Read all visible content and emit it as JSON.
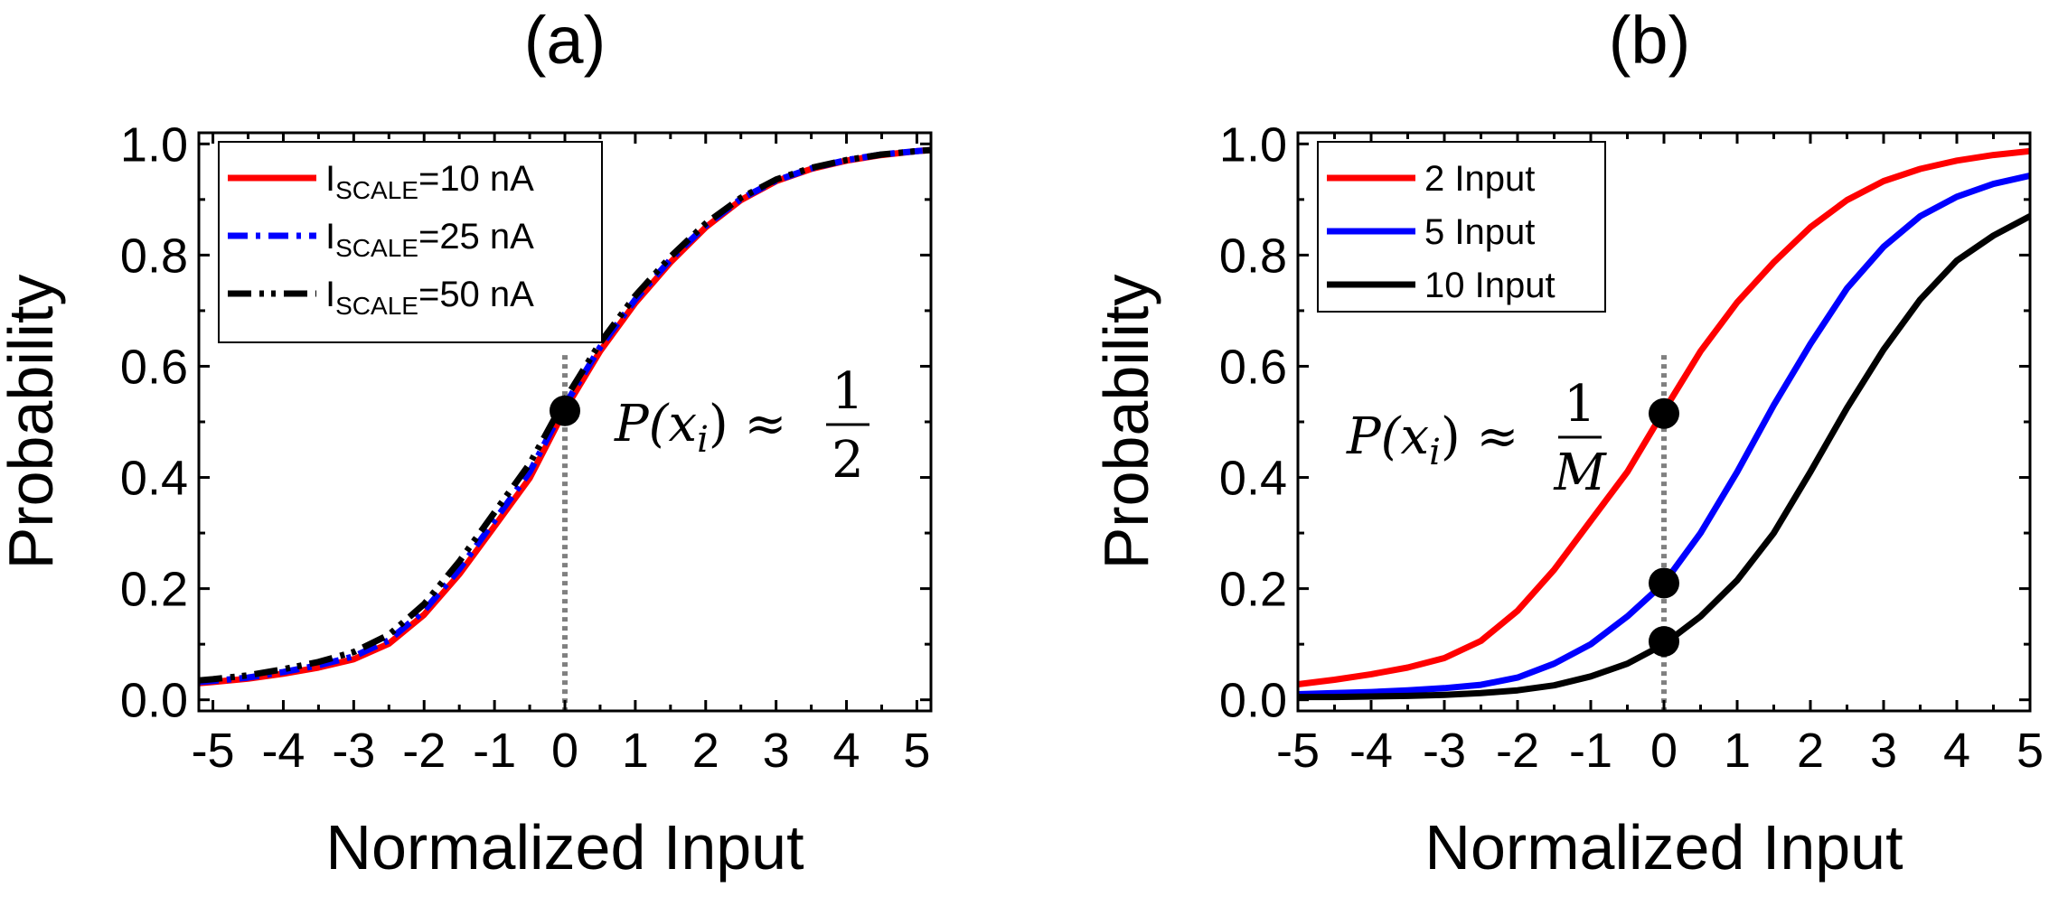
{
  "chart_data": [
    {
      "type": "line",
      "title": "(a)",
      "xlabel": "Normalized Input",
      "ylabel": "Probability",
      "xlim": [
        -5.2,
        5.2
      ],
      "ylim": [
        -0.02,
        1.02
      ],
      "xticks": [
        "-5",
        "-4",
        "-3",
        "-2",
        "-1",
        "0",
        "1",
        "2",
        "3",
        "4",
        "5"
      ],
      "yticks": [
        "0.0",
        "0.2",
        "0.4",
        "0.6",
        "0.8",
        "1.0"
      ],
      "legend_position": "top-left",
      "series": [
        {
          "name_main": "I",
          "name_sub": "SCALE",
          "name_rest": "=10 nA",
          "color": "#ff0000",
          "style": "solid",
          "x": [
            -5.2,
            -5,
            -4.5,
            -4,
            -3.5,
            -3,
            -2.5,
            -2,
            -1.5,
            -1,
            -0.5,
            0,
            0.5,
            1,
            1.5,
            2,
            2.5,
            3,
            3.5,
            4,
            4.5,
            5,
            5.2
          ],
          "y": [
            0.03,
            0.032,
            0.038,
            0.047,
            0.058,
            0.073,
            0.101,
            0.153,
            0.226,
            0.312,
            0.399,
            0.522,
            0.627,
            0.714,
            0.787,
            0.85,
            0.899,
            0.933,
            0.955,
            0.97,
            0.98,
            0.987,
            0.989
          ]
        },
        {
          "name_main": "I",
          "name_sub": "SCALE",
          "name_rest": "=25 nA",
          "color": "#0000ff",
          "style": "dashdot",
          "x": [
            -5.2,
            -5,
            -4.5,
            -4,
            -3.5,
            -3,
            -2.5,
            -2,
            -1.5,
            -1,
            -0.5,
            0,
            0.5,
            1,
            1.5,
            2,
            2.5,
            3,
            3.5,
            4,
            4.5,
            5,
            5.2
          ],
          "y": [
            0.032,
            0.034,
            0.04,
            0.05,
            0.062,
            0.078,
            0.107,
            0.16,
            0.235,
            0.322,
            0.41,
            0.53,
            0.634,
            0.72,
            0.792,
            0.853,
            0.901,
            0.934,
            0.956,
            0.971,
            0.981,
            0.987,
            0.989
          ]
        },
        {
          "name_main": "I",
          "name_sub": "SCALE",
          "name_rest": "=50 nA",
          "color": "#000000",
          "style": "dashdotdot",
          "x": [
            -5.2,
            -5,
            -4.5,
            -4,
            -3.5,
            -3,
            -2.5,
            -2,
            -1.5,
            -1,
            -0.5,
            0,
            0.5,
            1,
            1.5,
            2,
            2.5,
            3,
            3.5,
            4,
            4.5,
            5,
            5.2
          ],
          "y": [
            0.035,
            0.037,
            0.044,
            0.055,
            0.068,
            0.086,
            0.117,
            0.172,
            0.249,
            0.337,
            0.425,
            0.54,
            0.642,
            0.727,
            0.797,
            0.857,
            0.903,
            0.936,
            0.957,
            0.971,
            0.981,
            0.987,
            0.989
          ]
        }
      ],
      "reference_line_x": 0,
      "marker_points": [
        {
          "x": 0,
          "y": 0.52
        }
      ],
      "annotation": {
        "text": "P(x",
        "sub": "i",
        "rest": ") ≈",
        "numerator": "1",
        "denominator": "2"
      }
    },
    {
      "type": "line",
      "title": "(b)",
      "xlabel": "Normalized Input",
      "ylabel": "Probability",
      "xlim": [
        -5,
        5
      ],
      "ylim": [
        -0.02,
        1.02
      ],
      "xticks": [
        "-5",
        "-4",
        "-3",
        "-2",
        "-1",
        "0",
        "1",
        "2",
        "3",
        "4",
        "5"
      ],
      "yticks": [
        "0.0",
        "0.2",
        "0.4",
        "0.6",
        "0.8",
        "1.0"
      ],
      "legend_position": "top-left",
      "series": [
        {
          "name_main": "2 Input",
          "name_sub": "",
          "name_rest": "",
          "color": "#ff0000",
          "style": "solid",
          "x": [
            -5,
            -4.5,
            -4,
            -3.5,
            -3,
            -2.5,
            -2,
            -1.5,
            -1,
            -0.5,
            0,
            0.5,
            1,
            1.5,
            2,
            2.5,
            3,
            3.5,
            4,
            4.5,
            5
          ],
          "y": [
            0.028,
            0.036,
            0.046,
            0.058,
            0.075,
            0.106,
            0.16,
            0.234,
            0.322,
            0.41,
            0.52,
            0.627,
            0.715,
            0.787,
            0.85,
            0.899,
            0.933,
            0.955,
            0.97,
            0.98,
            0.987
          ]
        },
        {
          "name_main": "5 Input",
          "name_sub": "",
          "name_rest": "",
          "color": "#0000ff",
          "style": "solid",
          "x": [
            -5,
            -4.5,
            -4,
            -3.5,
            -3,
            -2.5,
            -2,
            -1.5,
            -1,
            -0.5,
            0,
            0.5,
            1,
            1.5,
            2,
            2.5,
            3,
            3.5,
            4,
            4.5,
            5
          ],
          "y": [
            0.01,
            0.012,
            0.014,
            0.017,
            0.021,
            0.027,
            0.04,
            0.065,
            0.1,
            0.15,
            0.21,
            0.3,
            0.41,
            0.53,
            0.64,
            0.74,
            0.815,
            0.87,
            0.905,
            0.928,
            0.943
          ]
        },
        {
          "name_main": "10 Input",
          "name_sub": "",
          "name_rest": "",
          "color": "#000000",
          "style": "solid",
          "x": [
            -5,
            -4.5,
            -4,
            -3.5,
            -3,
            -2.5,
            -2,
            -1.5,
            -1,
            -0.5,
            0,
            0.5,
            1,
            1.5,
            2,
            2.5,
            3,
            3.5,
            4,
            4.5,
            5
          ],
          "y": [
            0.005,
            0.005,
            0.006,
            0.007,
            0.009,
            0.012,
            0.017,
            0.026,
            0.042,
            0.065,
            0.1,
            0.15,
            0.215,
            0.3,
            0.41,
            0.525,
            0.63,
            0.72,
            0.79,
            0.835,
            0.87
          ]
        }
      ],
      "reference_line_x": 0,
      "marker_points": [
        {
          "x": 0,
          "y": 0.515
        },
        {
          "x": 0,
          "y": 0.21
        },
        {
          "x": 0,
          "y": 0.105
        }
      ],
      "annotation": {
        "text": "P(x",
        "sub": "i",
        "rest": ") ≈",
        "numerator": "1",
        "denominator": "M"
      }
    }
  ]
}
